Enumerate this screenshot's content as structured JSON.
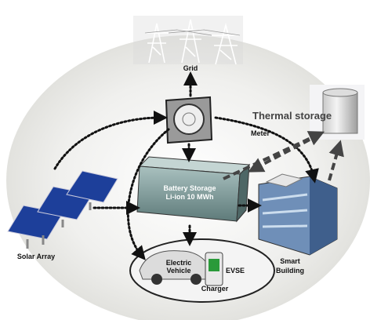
{
  "nodes": {
    "grid": {
      "label": "Grid"
    },
    "meter": {
      "label": "Meter"
    },
    "thermal_storage": {
      "label": "Thermal storage"
    },
    "battery": {
      "lines": [
        "Battery Storage",
        "Li-ion  10 MWh"
      ]
    },
    "solar_array": {
      "label": "Solar Array"
    },
    "smart_building": {
      "lines": [
        "Smart",
        "Building"
      ]
    },
    "electric_vehicle": {
      "lines": [
        "Electric",
        "Vehicle"
      ]
    },
    "charger": {
      "label": "Charger"
    },
    "evse": {
      "label": "EVSE"
    }
  }
}
